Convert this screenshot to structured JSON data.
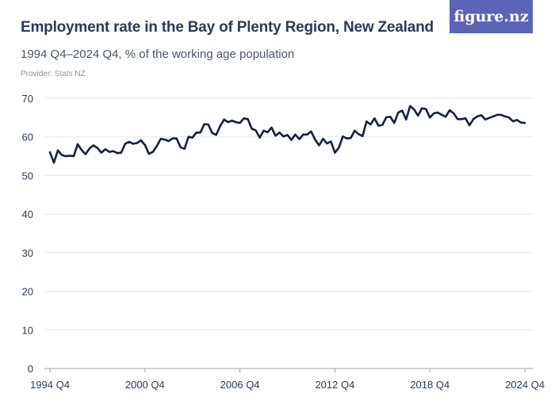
{
  "header": {
    "title": "Employment rate in the Bay of Plenty Region, New Zealand",
    "subtitle": "1994 Q4–2024 Q4, % of the working age population",
    "provider": "Provider: Stats NZ",
    "logo_text": "figure.nz"
  },
  "colors": {
    "line": "#14213d",
    "grid": "#e5e7eb",
    "logo_bg": "#5b63b7"
  },
  "chart_data": {
    "type": "line",
    "title": "Employment rate in the Bay of Plenty Region, New Zealand",
    "subtitle": "1994 Q4–2024 Q4, % of the working age population",
    "xlabel": "",
    "ylabel": "",
    "ylim": [
      0,
      70
    ],
    "yticks": [
      0,
      10,
      20,
      30,
      40,
      50,
      60,
      70
    ],
    "xticks": [
      "1994 Q4",
      "2000 Q4",
      "2006 Q4",
      "2012 Q4",
      "2018 Q4",
      "2024 Q4"
    ],
    "grid": true,
    "x_start": "1994 Q4",
    "x_end": "2024 Q4",
    "series": [
      {
        "values": [
          56.0,
          53.3,
          56.5,
          55.3,
          55.0,
          55.1,
          55.0,
          58.1,
          56.6,
          55.5,
          57.0,
          57.8,
          57.1,
          55.9,
          56.8,
          56.1,
          56.3,
          55.8,
          55.9,
          58.2,
          58.7,
          58.2,
          58.4,
          59.1,
          57.9,
          55.6,
          56.1,
          57.6,
          59.5,
          59.3,
          58.9,
          59.6,
          59.6,
          57.3,
          56.9,
          60.0,
          59.8,
          61.1,
          61.1,
          63.3,
          63.2,
          61.0,
          60.5,
          62.8,
          64.5,
          63.8,
          64.2,
          63.8,
          63.6,
          64.8,
          64.6,
          62.1,
          61.7,
          59.8,
          61.6,
          61.2,
          62.4,
          60.3,
          61.1,
          60.1,
          60.5,
          59.2,
          60.6,
          59.4,
          60.6,
          60.6,
          61.4,
          59.3,
          57.8,
          59.5,
          58.3,
          58.8,
          55.9,
          57.2,
          60.1,
          59.6,
          59.7,
          61.6,
          60.7,
          60.2,
          64.0,
          63.2,
          64.8,
          62.9,
          63.1,
          65.1,
          65.2,
          63.6,
          66.3,
          66.8,
          64.5,
          68.0,
          67.1,
          65.5,
          67.4,
          67.2,
          65.0,
          66.1,
          66.3,
          65.7,
          65.2,
          66.9,
          66.1,
          64.6,
          64.6,
          64.8,
          63.0,
          64.6,
          65.3,
          65.6,
          64.5,
          64.9,
          65.3,
          65.7,
          65.7,
          65.3,
          65.0,
          64.0,
          64.4,
          63.7,
          63.6
        ]
      }
    ]
  }
}
